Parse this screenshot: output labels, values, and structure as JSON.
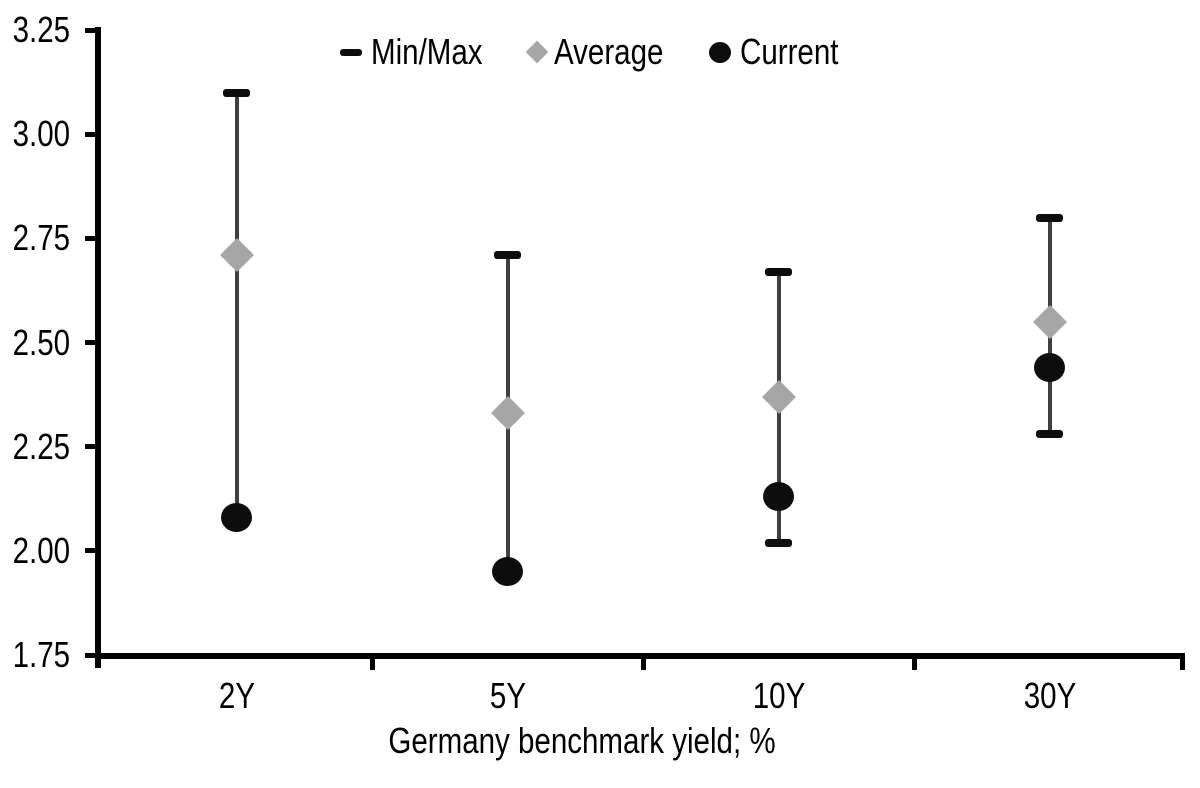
{
  "chart_data": {
    "type": "scatter",
    "subtype": "min-max-range",
    "title": "",
    "xlabel": "Germany benchmark yield; %",
    "ylabel": "",
    "categories": [
      "2Y",
      "5Y",
      "10Y",
      "30Y"
    ],
    "series": [
      {
        "name": "Min/Max",
        "marker": "dash",
        "max": [
          3.1,
          2.71,
          2.67,
          2.8
        ],
        "min": [
          2.08,
          1.95,
          2.02,
          2.28
        ]
      },
      {
        "name": "Average",
        "marker": "diamond",
        "values": [
          2.71,
          2.33,
          2.37,
          2.55
        ]
      },
      {
        "name": "Current",
        "marker": "circle",
        "values": [
          2.08,
          1.95,
          2.13,
          2.44
        ]
      }
    ],
    "ylim": [
      1.75,
      3.25
    ],
    "ytick_step": 0.25,
    "ytick_labels": [
      "3.25",
      "3.00",
      "2.75",
      "2.50",
      "2.25",
      "2.00",
      "1.75"
    ],
    "grid": false,
    "legend_position": "top-center"
  },
  "colors": {
    "background": "#ffffff",
    "axis": "#000000",
    "text": "#000000",
    "range_line": "#3f3f3f",
    "minmax_cap": "#0d0d0d",
    "average_fill": "#a6a6a6",
    "current_fill": "#0d0d0d"
  }
}
